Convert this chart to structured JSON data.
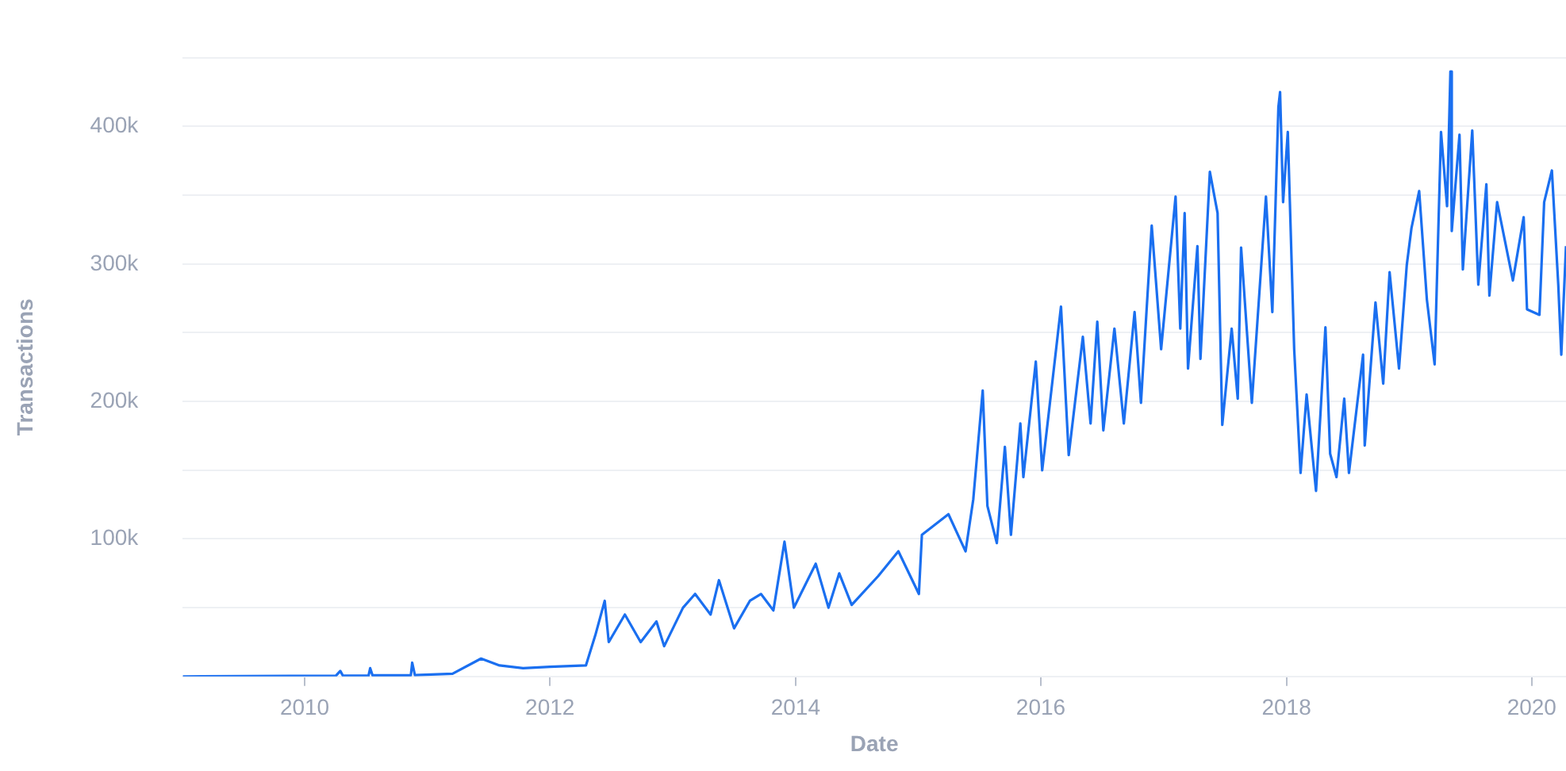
{
  "chart_data": {
    "type": "line",
    "xlabel": "Date",
    "ylabel": "Transactions",
    "grid": "y",
    "legend": false,
    "xlim": [
      "2009-01-03",
      "2020-04-12"
    ],
    "xticks": [
      {
        "value": "2010",
        "label": "2010"
      },
      {
        "value": "2012",
        "label": "2012"
      },
      {
        "value": "2014",
        "label": "2014"
      },
      {
        "value": "2016",
        "label": "2016"
      },
      {
        "value": "2018",
        "label": "2018"
      },
      {
        "value": "2020",
        "label": "2020"
      }
    ],
    "ylim": [
      0,
      450000
    ],
    "yticks": [
      {
        "value": 0,
        "label": null
      },
      {
        "value": 50000,
        "label": null
      },
      {
        "value": 100000,
        "label": "100k"
      },
      {
        "value": 150000,
        "label": null
      },
      {
        "value": 200000,
        "label": "200k"
      },
      {
        "value": 250000,
        "label": null
      },
      {
        "value": 300000,
        "label": "300k"
      },
      {
        "value": 350000,
        "label": null
      },
      {
        "value": 400000,
        "label": "400k"
      },
      {
        "value": 450000,
        "label": null
      }
    ],
    "series": [
      {
        "color": "#1a6ff0",
        "x": [
          "2009-01-03",
          "2010-04-04",
          "2010-04-17",
          "2010-04-25",
          "2010-07-10",
          "2010-07-15",
          "2010-07-22",
          "2010-11-13",
          "2010-11-17",
          "2010-11-25",
          "2011-03-17",
          "2011-06-10",
          "2011-08-04",
          "2011-10-13",
          "2012-01-01",
          "2012-04-17",
          "2012-05-15",
          "2012-06-12",
          "2012-06-24",
          "2012-08-11",
          "2012-09-27",
          "2012-11-13",
          "2012-12-06",
          "2013-01-31",
          "2013-03-08",
          "2013-04-23",
          "2013-05-18",
          "2013-07-02",
          "2013-08-18",
          "2013-09-20",
          "2013-10-27",
          "2013-11-29",
          "2013-12-27",
          "2014-03-02",
          "2014-04-09",
          "2014-05-11",
          "2014-06-17",
          "2014-09-04",
          "2014-11-03",
          "2015-01-03",
          "2015-01-12",
          "2015-04-01",
          "2015-05-22",
          "2015-06-14",
          "2015-07-12",
          "2015-07-26",
          "2015-08-23",
          "2015-09-16",
          "2015-10-04",
          "2015-11-01",
          "2015-11-10",
          "2015-12-17",
          "2016-01-05",
          "2016-03-01",
          "2016-03-24",
          "2016-05-05",
          "2016-05-28",
          "2016-06-17",
          "2016-07-05",
          "2016-08-07",
          "2016-09-04",
          "2016-10-06",
          "2016-10-25",
          "2016-11-26",
          "2016-12-24",
          "2017-02-05",
          "2017-02-19",
          "2017-03-04",
          "2017-03-14",
          "2017-04-11",
          "2017-04-20",
          "2017-05-18",
          "2017-06-10",
          "2017-06-24",
          "2017-07-22",
          "2017-08-09",
          "2017-08-19",
          "2017-09-20",
          "2017-11-01",
          "2017-11-20",
          "2017-12-08",
          "2017-12-13",
          "2017-12-22",
          "2018-01-05",
          "2018-01-24",
          "2018-02-12",
          "2018-03-02",
          "2018-03-30",
          "2018-04-27",
          "2018-05-11",
          "2018-05-30",
          "2018-06-22",
          "2018-07-06",
          "2018-08-17",
          "2018-08-22",
          "2018-09-23",
          "2018-10-16",
          "2018-11-04",
          "2018-12-02",
          "2018-12-25",
          "2019-01-08",
          "2019-01-31",
          "2019-02-23",
          "2019-03-18",
          "2019-04-06",
          "2019-04-24",
          "2019-05-04",
          "2019-05-08",
          "2019-05-31",
          "2019-06-10",
          "2019-07-08",
          "2019-07-26",
          "2019-08-19",
          "2019-08-28",
          "2019-09-20",
          "2019-11-06",
          "2019-12-08",
          "2019-12-18",
          "2020-01-24",
          "2020-02-07",
          "2020-03-01",
          "2020-03-20",
          "2020-03-29",
          "2020-04-12"
        ],
        "values": [
          0,
          500,
          4000,
          500,
          500,
          6000,
          800,
          800,
          10000,
          1000,
          2000,
          13000,
          8000,
          6000,
          7000,
          8000,
          30000,
          55000,
          25000,
          45000,
          25000,
          40000,
          22000,
          50000,
          60000,
          45000,
          70000,
          35000,
          55000,
          60000,
          48000,
          98000,
          50000,
          82000,
          50000,
          75000,
          52000,
          73000,
          91000,
          60000,
          103000,
          118000,
          91000,
          129000,
          208000,
          124000,
          97000,
          167000,
          103000,
          184000,
          145000,
          229000,
          150000,
          269000,
          161000,
          247000,
          184000,
          258000,
          179000,
          253000,
          184000,
          265000,
          199000,
          328000,
          238000,
          349000,
          253000,
          337000,
          224000,
          313000,
          231000,
          367000,
          337000,
          183000,
          253000,
          202000,
          312000,
          199000,
          349000,
          265000,
          414000,
          425000,
          345000,
          396000,
          238000,
          148000,
          205000,
          135000,
          254000,
          162000,
          145000,
          202000,
          148000,
          234000,
          168000,
          272000,
          213000,
          294000,
          224000,
          299000,
          326000,
          353000,
          274000,
          227000,
          396000,
          342000,
          440000,
          324000,
          394000,
          296000,
          397000,
          285000,
          358000,
          277000,
          345000,
          288000,
          334000,
          267000,
          263000,
          345000,
          368000,
          285000,
          234000,
          313000
        ]
      }
    ]
  }
}
